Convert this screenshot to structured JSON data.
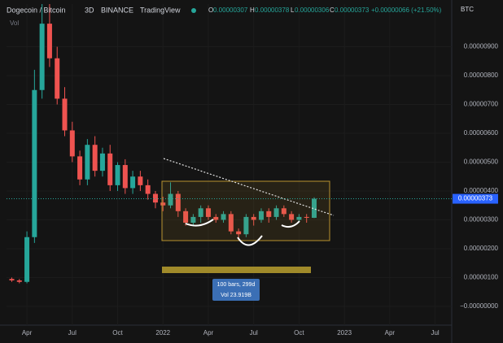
{
  "header": {
    "symbol": "Dogecoin / Bitcoin",
    "interval": "3D",
    "exchange": "BINANCE",
    "brand": "TradingView",
    "open_label": "O",
    "open": "0.00000307",
    "high_label": "H",
    "high": "0.00000378",
    "low_label": "L",
    "low": "0.00000306",
    "close_label": "C",
    "close": "0.00000373",
    "change": "+0.00000066 (+21.50%)",
    "volume_label": "Vol",
    "currency": "BTC"
  },
  "chart_data": {
    "type": "candlestick",
    "x": [
      2.0,
      2.5,
      3.0,
      3.5,
      4.0,
      4.5,
      5.0,
      5.5,
      6.0,
      6.5,
      7.0,
      7.5,
      8.0,
      8.5,
      9.0,
      9.5,
      10.0,
      10.5,
      11.0,
      11.5,
      12.0,
      12.5,
      13.0,
      13.5,
      14.0,
      14.5,
      15.0,
      15.5,
      16.0,
      16.5,
      17.0,
      17.5,
      18.0,
      18.5,
      19.0,
      19.5,
      20.0,
      20.5,
      21.0,
      21.5,
      22.0
    ],
    "open": [
      9.5e-07,
      9e-07,
      8.5e-07,
      2.4e-06,
      7.5e-06,
      9.8e-06,
      8.6e-06,
      7.2e-06,
      6.1e-06,
      5.2e-06,
      4.4e-06,
      5.6e-06,
      4.7e-06,
      5.3e-06,
      4.2e-06,
      4.9e-06,
      4.1e-06,
      4.5e-06,
      4.2e-06,
      3.9e-06,
      3.6e-06,
      3.5e-06,
      3.9e-06,
      3.3e-06,
      2.9e-06,
      3.1e-06,
      3.4e-06,
      3.1e-06,
      3e-06,
      3.2e-06,
      2.6e-06,
      2.5e-06,
      3.1e-06,
      3e-06,
      3.3e-06,
      3.1e-06,
      3.4e-06,
      3.2e-06,
      3e-06,
      3.1e-06,
      3.07e-06
    ],
    "high": [
      1e-06,
      9.5e-07,
      2.6e-06,
      8.2e-06,
      1.1e-05,
      1.05e-05,
      9e-06,
      7.6e-06,
      6.4e-06,
      5.4e-06,
      5.8e-06,
      5.9e-06,
      5.5e-06,
      5.6e-06,
      5e-06,
      5.1e-06,
      4.7e-06,
      4.7e-06,
      4.4e-06,
      4e-06,
      3.8e-06,
      4.3e-06,
      4e-06,
      3.4e-06,
      3.2e-06,
      3.5e-06,
      3.5e-06,
      3.2e-06,
      3.3e-06,
      3.3e-06,
      2.7e-06,
      3.2e-06,
      3.2e-06,
      3.4e-06,
      3.4e-06,
      3.5e-06,
      3.5e-06,
      3.3e-06,
      3.2e-06,
      3.2e-06,
      3.78e-06
    ],
    "low": [
      8.5e-07,
      8e-07,
      8e-07,
      2.2e-06,
      7.2e-06,
      8.3e-06,
      7e-06,
      5.9e-06,
      5e-06,
      4.2e-06,
      4.2e-06,
      4.5e-06,
      4.5e-06,
      4e-06,
      4e-06,
      3.9e-06,
      3.9e-06,
      4e-06,
      3.7e-06,
      3.4e-06,
      3.3e-06,
      3.4e-06,
      3.1e-06,
      2.8e-06,
      2.8e-06,
      2.9e-06,
      3e-06,
      2.9e-06,
      2.9e-06,
      2.5e-06,
      2.3e-06,
      2.4e-06,
      2.8e-06,
      2.9e-06,
      2.9e-06,
      3e-06,
      3.1e-06,
      2.9e-06,
      2.9e-06,
      2.9e-06,
      3.06e-06
    ],
    "close": [
      9e-07,
      8.5e-07,
      2.4e-06,
      7.5e-06,
      9.8e-06,
      8.6e-06,
      7.2e-06,
      6.1e-06,
      5.2e-06,
      4.4e-06,
      5.6e-06,
      4.7e-06,
      5.3e-06,
      4.2e-06,
      4.9e-06,
      4.1e-06,
      4.5e-06,
      4.2e-06,
      3.9e-06,
      3.6e-06,
      3.5e-06,
      3.9e-06,
      3.3e-06,
      2.9e-06,
      3.1e-06,
      3.4e-06,
      3.1e-06,
      3e-06,
      3.2e-06,
      2.6e-06,
      2.5e-06,
      3.1e-06,
      3e-06,
      3.3e-06,
      3.1e-06,
      3.4e-06,
      3.2e-06,
      3e-06,
      3.1e-06,
      3.07e-06,
      3.73e-06
    ],
    "up_color": "#26a69a",
    "down_color": "#ef5350",
    "xlim": [
      1.65,
      31.1
    ],
    "xticks": [
      {
        "value": 3,
        "label": "Apr"
      },
      {
        "value": 6,
        "label": "Jul"
      },
      {
        "value": 9,
        "label": "Oct"
      },
      {
        "value": 12,
        "label": "2022"
      },
      {
        "value": 15,
        "label": "Apr"
      },
      {
        "value": 18,
        "label": "Jul"
      },
      {
        "value": 21,
        "label": "Oct"
      },
      {
        "value": 24,
        "label": "2023"
      },
      {
        "value": 27,
        "label": "Apr"
      },
      {
        "value": 30,
        "label": "Jul"
      }
    ],
    "ylim": [
      -6.5e-07,
      1.048e-05
    ],
    "yticks": [
      {
        "value": 0,
        "label": "−0.00000000"
      },
      {
        "value": 1e-06,
        "label": "0.00000100"
      },
      {
        "value": 2e-06,
        "label": "0.00000200"
      },
      {
        "value": 3e-06,
        "label": "0.00000300"
      },
      {
        "value": 4e-06,
        "label": "0.00000400"
      },
      {
        "value": 5e-06,
        "label": "0.00000500"
      },
      {
        "value": 6e-06,
        "label": "0.00000600"
      },
      {
        "value": 7e-06,
        "label": "0.00000700"
      },
      {
        "value": 8e-06,
        "label": "0.00000800"
      },
      {
        "value": 9e-06,
        "label": "0.00000900"
      }
    ],
    "last_price": {
      "value": 3.73e-06,
      "label": "0.00000373"
    },
    "annotations": [
      "100 bars, 299d",
      "Vol 23.919B"
    ]
  }
}
